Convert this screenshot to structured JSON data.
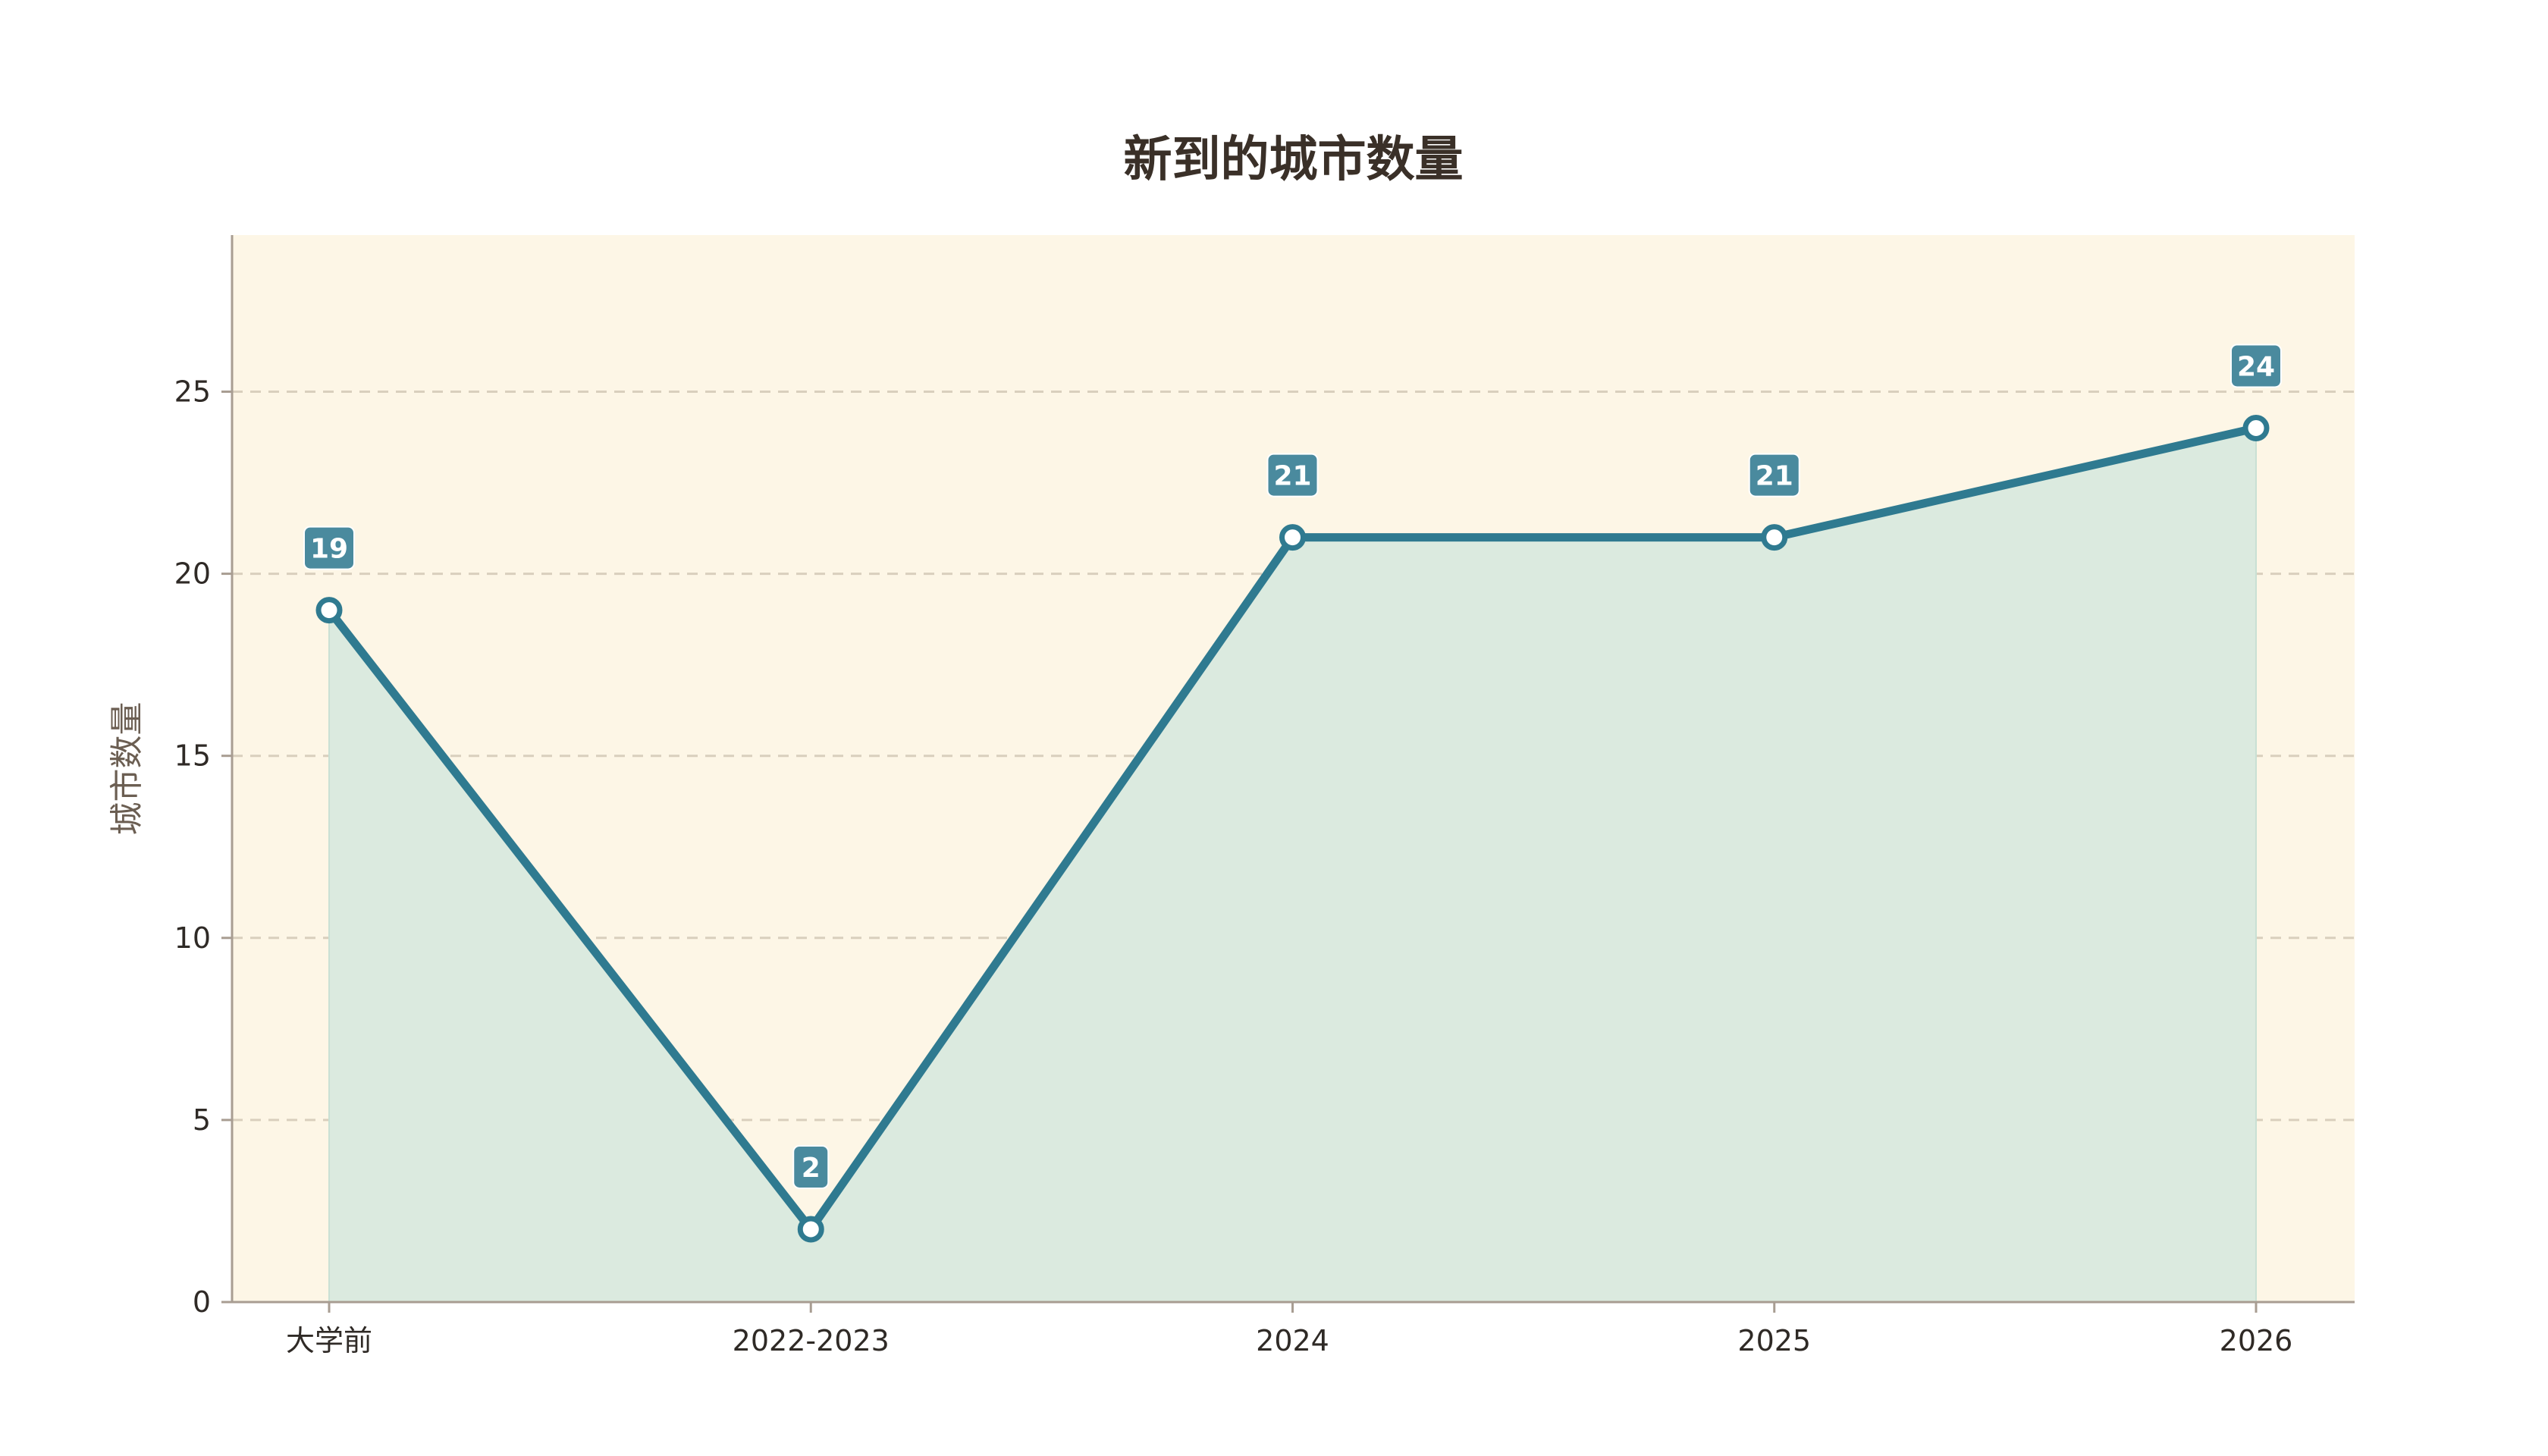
{
  "chart_data": {
    "type": "area",
    "title": "新到的城市数量",
    "xlabel": "",
    "ylabel": "城市数量",
    "categories": [
      "大学前",
      "2022-2023",
      "2024",
      "2025",
      "2026"
    ],
    "values": [
      19,
      2,
      21,
      21,
      24
    ],
    "ylim": [
      0,
      29.3
    ],
    "yticks": [
      0,
      5,
      10,
      15,
      20,
      25
    ],
    "grid": true,
    "legend": "none",
    "data_labels": [
      "19",
      "2",
      "21",
      "21",
      "24"
    ]
  },
  "colors": {
    "plot_background": "#fdf6e6",
    "line": "#2f7a90",
    "area_fill": "#dbeadf",
    "label_box": "#4a8a9e",
    "grid": "#d9cfbd",
    "axis": "#a89d92"
  }
}
